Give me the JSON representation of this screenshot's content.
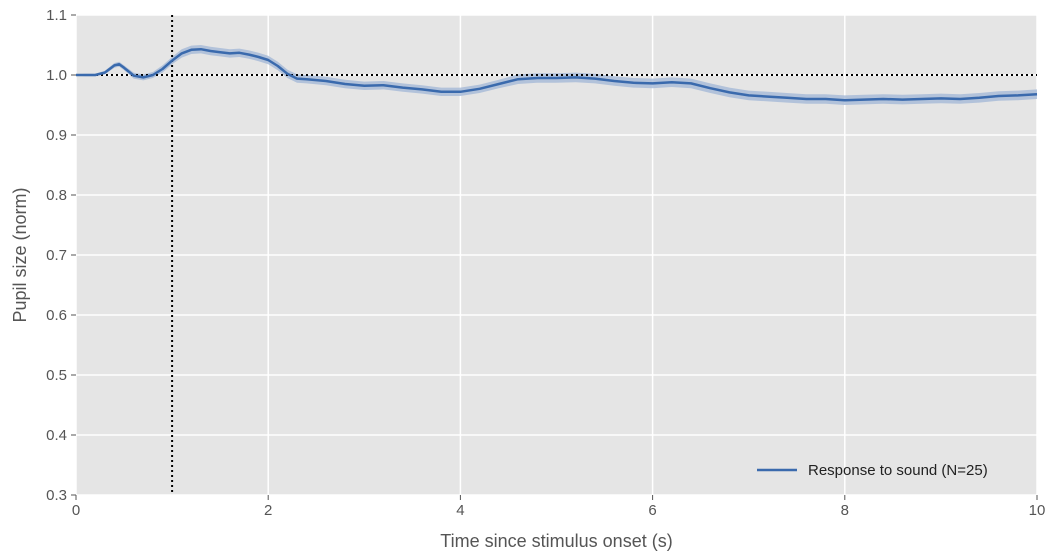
{
  "chart_data": {
    "type": "line",
    "title": "",
    "xlabel": "Time since stimulus onset (s)",
    "ylabel": "Pupil size (norm)",
    "xlim": [
      0,
      10
    ],
    "ylim": [
      0.3,
      1.1
    ],
    "xticks": [
      0,
      2,
      4,
      6,
      8,
      10
    ],
    "xtick_labels": [
      "0",
      "2",
      "4",
      "6",
      "8",
      "10"
    ],
    "yticks": [
      0.3,
      0.4,
      0.5,
      0.6,
      0.7,
      0.8,
      0.9,
      1.0,
      1.1
    ],
    "ytick_labels": [
      "0.3",
      "0.4",
      "0.5",
      "0.6",
      "0.7",
      "0.8",
      "0.9",
      "1.0",
      "1.1"
    ],
    "grid": true,
    "legend_position": "bottom-right",
    "colors": {
      "background": "#e5e5e5",
      "grid": "#ffffff",
      "line": "#3a6aad",
      "band": "#a9bcd8",
      "reference": "#000000",
      "text": "#555555"
    },
    "series": [
      {
        "name": "Response to sound (N=25)",
        "x": [
          0,
          0.1,
          0.2,
          0.3,
          0.4,
          0.45,
          0.5,
          0.6,
          0.7,
          0.8,
          0.9,
          1.0,
          1.1,
          1.2,
          1.3,
          1.4,
          1.5,
          1.6,
          1.7,
          1.8,
          1.9,
          2.0,
          2.1,
          2.2,
          2.3,
          2.4,
          2.6,
          2.8,
          3.0,
          3.2,
          3.4,
          3.6,
          3.8,
          4.0,
          4.2,
          4.4,
          4.6,
          4.8,
          5.0,
          5.2,
          5.4,
          5.6,
          5.8,
          6.0,
          6.2,
          6.4,
          6.6,
          6.8,
          7.0,
          7.2,
          7.4,
          7.6,
          7.8,
          8.0,
          8.2,
          8.4,
          8.6,
          8.8,
          9.0,
          9.2,
          9.4,
          9.6,
          9.8,
          10.0
        ],
        "y": [
          1.0,
          1.0,
          1.0,
          1.004,
          1.016,
          1.018,
          1.012,
          0.999,
          0.996,
          1.0,
          1.01,
          1.024,
          1.036,
          1.042,
          1.043,
          1.04,
          1.038,
          1.036,
          1.037,
          1.034,
          1.03,
          1.025,
          1.015,
          1.002,
          0.994,
          0.993,
          0.99,
          0.985,
          0.982,
          0.983,
          0.979,
          0.976,
          0.972,
          0.972,
          0.977,
          0.985,
          0.993,
          0.995,
          0.995,
          0.996,
          0.994,
          0.99,
          0.987,
          0.986,
          0.988,
          0.986,
          0.978,
          0.971,
          0.966,
          0.964,
          0.962,
          0.96,
          0.96,
          0.958,
          0.959,
          0.96,
          0.959,
          0.96,
          0.961,
          0.96,
          0.962,
          0.965,
          0.966,
          0.968
        ],
        "band_halfwidth": [
          0.001,
          0.002,
          0.002,
          0.003,
          0.004,
          0.004,
          0.004,
          0.005,
          0.005,
          0.005,
          0.006,
          0.006,
          0.007,
          0.007,
          0.007,
          0.007,
          0.007,
          0.007,
          0.007,
          0.007,
          0.007,
          0.007,
          0.007,
          0.007,
          0.007,
          0.007,
          0.007,
          0.007,
          0.007,
          0.007,
          0.007,
          0.007,
          0.007,
          0.007,
          0.007,
          0.007,
          0.008,
          0.008,
          0.008,
          0.008,
          0.008,
          0.008,
          0.008,
          0.008,
          0.008,
          0.008,
          0.008,
          0.008,
          0.008,
          0.008,
          0.008,
          0.008,
          0.008,
          0.008,
          0.008,
          0.008,
          0.008,
          0.008,
          0.008,
          0.008,
          0.008,
          0.008,
          0.008,
          0.008
        ]
      }
    ],
    "reference_lines": [
      {
        "orientation": "horizontal",
        "value": 1.0,
        "style": "dotted"
      },
      {
        "orientation": "vertical",
        "value": 1.0,
        "style": "dotted"
      }
    ]
  }
}
